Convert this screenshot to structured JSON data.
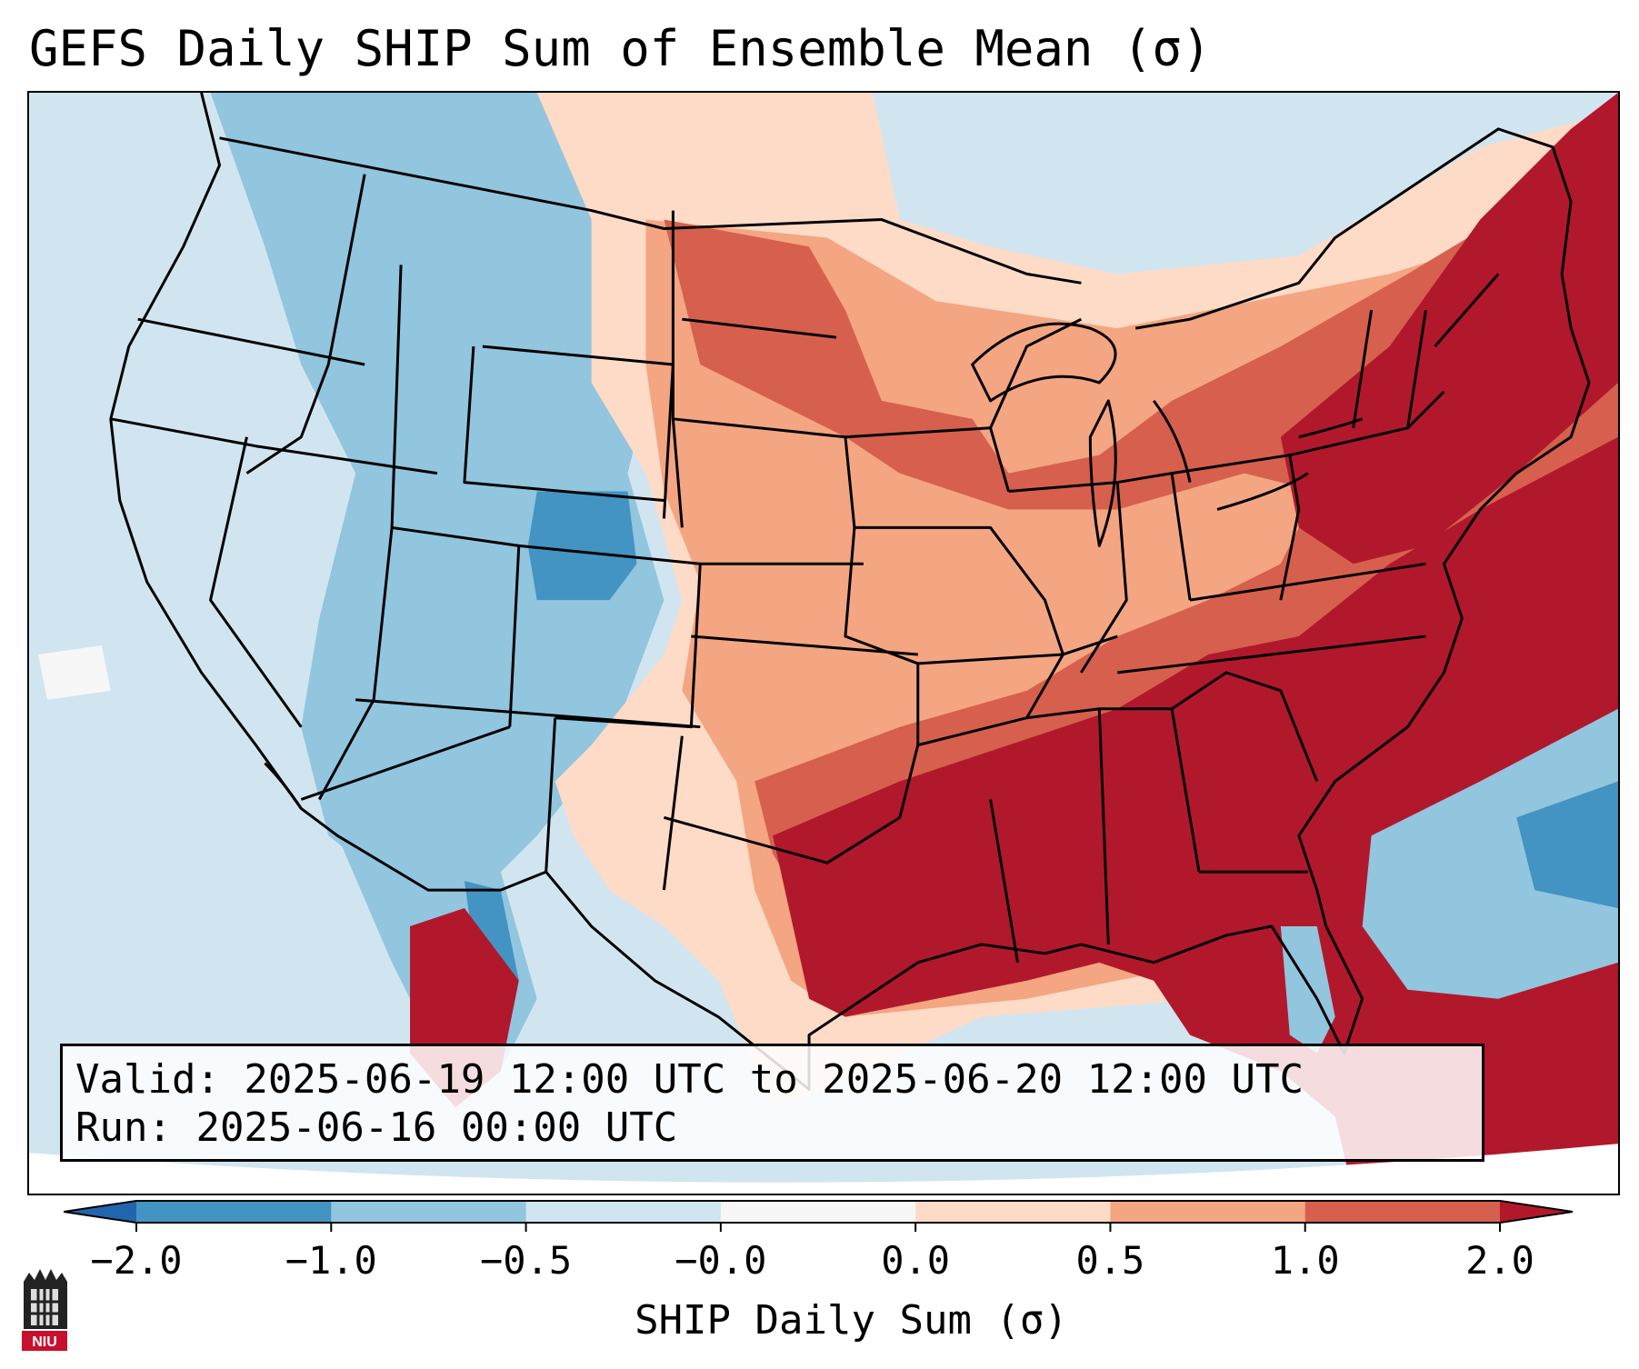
{
  "title": "GEFS Daily SHIP Sum of Ensemble Mean (σ)",
  "info": {
    "valid": "Valid: 2025-06-19 12:00 UTC to 2025-06-20 12:00 UTC",
    "run": "Run:    2025-06-16 00:00 UTC"
  },
  "colorbar": {
    "label": "SHIP Daily Sum (σ)",
    "tick_labels": [
      "−2.0",
      "−1.0",
      "−0.5",
      "−0.0",
      "0.0",
      "0.5",
      "1.0",
      "2.0"
    ],
    "colors": [
      "#2166ac",
      "#4393c3",
      "#92c5de",
      "#d1e5f0",
      "#f7f7f7",
      "#fddbc7",
      "#f4a582",
      "#d6604d",
      "#b2182b"
    ]
  },
  "logo": {
    "text": "NIU",
    "icon": "university-building-icon"
  },
  "map": {
    "region": "Contiguous United States",
    "colors": {
      "strong_neg": "#4393c3",
      "neg": "#92c5de",
      "weak_neg": "#d1e5f0",
      "near_zero": "#f7f7f7",
      "weak_pos": "#fddbc7",
      "pos": "#f4a582",
      "mod_pos": "#d6604d",
      "strong_pos": "#b2182b"
    }
  }
}
